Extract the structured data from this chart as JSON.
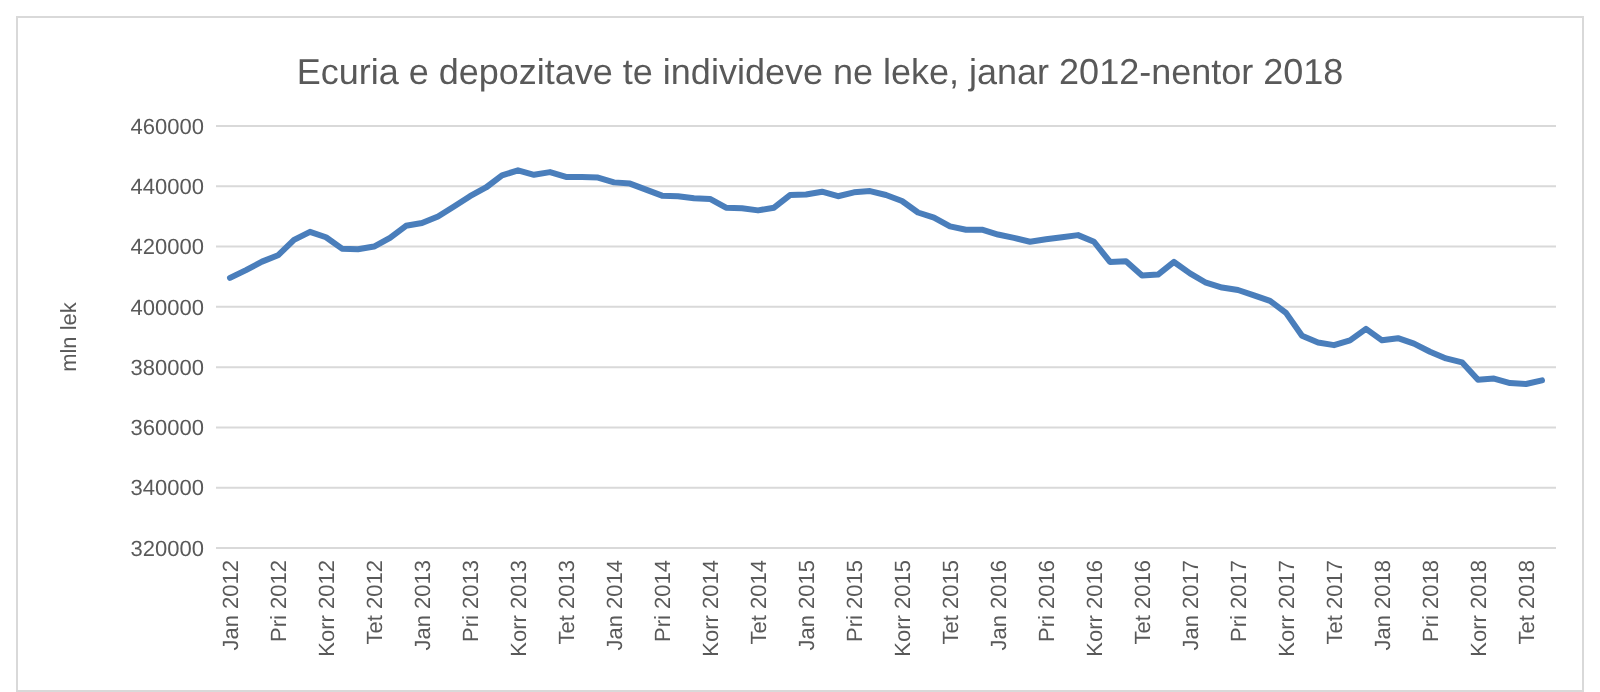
{
  "chart_data": {
    "type": "line",
    "title": "Ecuria e depozitave te individeve ne leke, janar 2012-nentor 2018",
    "ylabel": "mln lek",
    "categories": [
      "Jan 2012",
      null,
      null,
      "Pri 2012",
      null,
      null,
      "Korr 2012",
      null,
      null,
      "Tet 2012",
      null,
      null,
      "Jan 2013",
      null,
      null,
      "Pri 2013",
      null,
      null,
      "Korr 2013",
      null,
      null,
      "Tet 2013",
      null,
      null,
      "Jan 2014",
      null,
      null,
      "Pri 2014",
      null,
      null,
      "Korr 2014",
      null,
      null,
      "Tet 2014",
      null,
      null,
      "Jan 2015",
      null,
      null,
      "Pri 2015",
      null,
      null,
      "Korr 2015",
      null,
      null,
      "Tet 2015",
      null,
      null,
      "Jan 2016",
      null,
      null,
      "Pri 2016",
      null,
      null,
      "Korr 2016",
      null,
      null,
      "Tet 2016",
      null,
      null,
      "Jan 2017",
      null,
      null,
      "Pri 2017",
      null,
      null,
      "Korr 2017",
      null,
      null,
      "Tet 2017",
      null,
      null,
      "Jan 2018",
      null,
      null,
      "Pri 2018",
      null,
      null,
      "Korr 2018",
      null,
      null,
      "Tet 2018",
      null
    ],
    "series": [
      {
        "color": "#4a7ebb",
        "values": [
          409600,
          412200,
          415000,
          417100,
          422200,
          424900,
          423100,
          419300,
          419100,
          420000,
          422900,
          426900,
          427800,
          430000,
          433300,
          436700,
          439600,
          443600,
          445300,
          443800,
          444700,
          443100,
          443100,
          442900,
          441300,
          440900,
          438900,
          436900,
          436700,
          436000,
          435800,
          432900,
          432700,
          432000,
          432900,
          437100,
          437300,
          438200,
          436700,
          438000,
          438400,
          437100,
          435100,
          431300,
          429600,
          426700,
          425600,
          425600,
          424000,
          422900,
          421600,
          422400,
          423100,
          423800,
          421600,
          414900,
          415100,
          410400,
          410700,
          414900,
          411100,
          408000,
          406400,
          405600,
          403800,
          402000,
          398000,
          390400,
          388200,
          387300,
          388900,
          392700,
          388900,
          389600,
          387800,
          385100,
          382900,
          381600,
          375800,
          376200,
          374700,
          374400,
          375600
        ]
      }
    ],
    "ylim": [
      320000,
      460000
    ],
    "yticks": [
      320000,
      340000,
      360000,
      380000,
      400000,
      420000,
      440000,
      460000
    ],
    "grid": "y",
    "marker": "none",
    "line_style": "solid"
  }
}
